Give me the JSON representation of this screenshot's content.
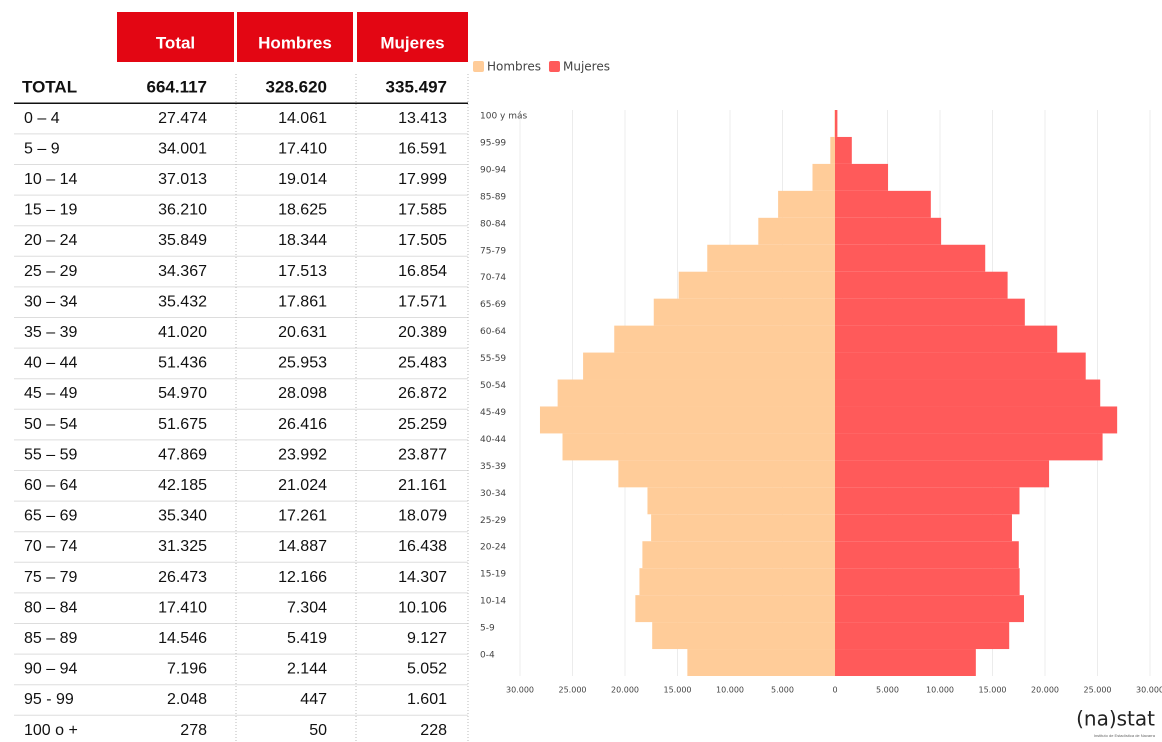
{
  "table": {
    "columns": [
      "Total",
      "Hombres",
      "Mujeres"
    ],
    "rows": [
      [
        "TOTAL",
        "664.117",
        "328.620",
        "335.497"
      ],
      [
        "0 – 4",
        "27.474",
        "14.061",
        "13.413"
      ],
      [
        "5 – 9",
        "34.001",
        "17.410",
        "16.591"
      ],
      [
        "10 – 14",
        "37.013",
        "19.014",
        "17.999"
      ],
      [
        "15 – 19",
        "36.210",
        "18.625",
        "17.585"
      ],
      [
        "20 – 24",
        "35.849",
        "18.344",
        "17.505"
      ],
      [
        "25 – 29",
        "34.367",
        "17.513",
        "16.854"
      ],
      [
        "30 – 34",
        "35.432",
        "17.861",
        "17.571"
      ],
      [
        "35 – 39",
        "41.020",
        "20.631",
        "20.389"
      ],
      [
        "40 – 44",
        "51.436",
        "25.953",
        "25.483"
      ],
      [
        "45 – 49",
        "54.970",
        "28.098",
        "26.872"
      ],
      [
        "50 – 54",
        "51.675",
        "26.416",
        "25.259"
      ],
      [
        "55 – 59",
        "47.869",
        "23.992",
        "23.877"
      ],
      [
        "60 – 64",
        "42.185",
        "21.024",
        "21.161"
      ],
      [
        "65 – 69",
        "35.340",
        "17.261",
        "18.079"
      ],
      [
        "70 – 74",
        "31.325",
        "14.887",
        "16.438"
      ],
      [
        "75 – 79",
        "26.473",
        "12.166",
        "14.307"
      ],
      [
        "80 – 84",
        "17.410",
        "7.304",
        "10.106"
      ],
      [
        "85 – 89",
        "14.546",
        "5.419",
        "9.127"
      ],
      [
        "90 – 94",
        "7.196",
        "2.144",
        "5.052"
      ],
      [
        "95 - 99",
        "2.048",
        "447",
        "1.601"
      ],
      [
        "100 o +",
        "278",
        "50",
        "228"
      ]
    ]
  },
  "chart_data": {
    "type": "pyramid",
    "categories": [
      "0-4",
      "5-9",
      "10-14",
      "15-19",
      "20-24",
      "25-29",
      "30-34",
      "35-39",
      "40-44",
      "45-49",
      "50-54",
      "55-59",
      "60-64",
      "65-69",
      "70-74",
      "75-79",
      "80-84",
      "85-89",
      "90-94",
      "95-99",
      "100 y más"
    ],
    "series": [
      {
        "name": "Hombres",
        "color": "#ffcc99",
        "values": [
          14061,
          17410,
          19014,
          18625,
          18344,
          17513,
          17861,
          20631,
          25953,
          28098,
          26416,
          23992,
          21024,
          17261,
          14887,
          12166,
          7304,
          5419,
          2144,
          447,
          50
        ]
      },
      {
        "name": "Mujeres",
        "color": "#ff5a5a",
        "values": [
          13413,
          16591,
          17999,
          17585,
          17505,
          16854,
          17571,
          20389,
          25483,
          26872,
          25259,
          23877,
          21161,
          18079,
          16438,
          14307,
          10106,
          9127,
          5052,
          1601,
          228
        ]
      }
    ],
    "xlim": [
      -30000,
      30000
    ],
    "xticks": [
      {
        "value": -30000,
        "label": "30.000"
      },
      {
        "value": -25000,
        "label": "25.000"
      },
      {
        "value": -20000,
        "label": "20.000"
      },
      {
        "value": -15000,
        "label": "15.000"
      },
      {
        "value": -10000,
        "label": "10.000"
      },
      {
        "value": -5000,
        "label": "5.000"
      },
      0,
      {
        "value": 5000,
        "label": "5.000"
      },
      {
        "value": 10000,
        "label": "10.000"
      },
      {
        "value": 15000,
        "label": "15.000"
      },
      {
        "value": 20000,
        "label": "20.000"
      },
      {
        "value": 25000,
        "label": "25.000"
      },
      {
        "value": 30000,
        "label": "30.000"
      }
    ],
    "grid": true,
    "legend": "top-left"
  },
  "logo": {
    "name": "(na)stat",
    "caption": "Instituto de Estadística de Navarra"
  }
}
